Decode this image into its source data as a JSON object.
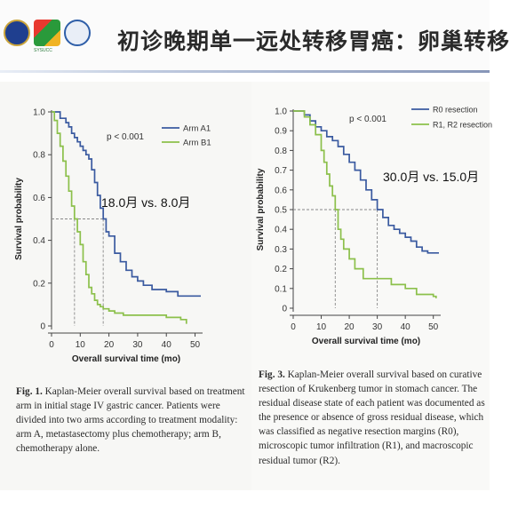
{
  "slide": {
    "title": "初诊晚期单一远处转移胃癌：卵巢转移"
  },
  "logos": [
    {
      "name": "university-seal",
      "color": "#1f3f8f"
    },
    {
      "name": "sysucc-logo",
      "caption": "SYSUCC",
      "color": "#2a9a3b"
    },
    {
      "name": "hospital-emblem",
      "color": "#2e5ea8"
    }
  ],
  "figure1": {
    "caption_label": "Fig. 1.",
    "caption_text": " Kaplan-Meier overall survival based on treatment arm in initial stage IV gastric cancer. Patients were divided into two arms according to treatment modality: arm A, metastasectomy plus chemotherapy; arm B, chemotherapy alone."
  },
  "figure2": {
    "caption_label": "Fig. 3.",
    "caption_text": " Kaplan-Meier overall survival based on curative resection of Krukenberg tumor in stomach cancer. The residual disease state of each patient was documented as the presence or absence of gross residual disease, which was classified as negative resection margins (R0), microscopic tumor infiltration (R1), and macroscopic residual tumor (R2)."
  },
  "chart_data": [
    {
      "type": "line",
      "step": true,
      "xlabel": "Overall survival time (mo)",
      "ylabel": "Survival probability",
      "xlim": [
        0,
        52
      ],
      "ylim": [
        0,
        1.0
      ],
      "xticks": [
        0,
        10,
        20,
        30,
        40,
        50
      ],
      "yticks": [
        0,
        0.2,
        0.4,
        0.6,
        0.8,
        1.0
      ],
      "yticklabels": [
        "0",
        "0.2",
        "0.4",
        "0.6",
        "0.8",
        "1.0"
      ],
      "pvalue": "p < 0.001",
      "annotation": "18.0月 vs. 8.0月",
      "median_y": 0.5,
      "median_x": [
        8,
        18
      ],
      "legend_position": "top-right",
      "series": [
        {
          "name": "Arm A1",
          "color": "#3a5aa0",
          "x": [
            0,
            3,
            5,
            6,
            7,
            8,
            9,
            10,
            11,
            12,
            13,
            14,
            15,
            16,
            17,
            18,
            19,
            20,
            22,
            24,
            26,
            28,
            30,
            32,
            35,
            40,
            44,
            48,
            52
          ],
          "y": [
            1.0,
            0.97,
            0.95,
            0.93,
            0.9,
            0.88,
            0.86,
            0.84,
            0.82,
            0.8,
            0.78,
            0.73,
            0.67,
            0.61,
            0.55,
            0.5,
            0.44,
            0.42,
            0.34,
            0.3,
            0.26,
            0.23,
            0.21,
            0.19,
            0.17,
            0.16,
            0.14,
            0.14,
            0.14
          ]
        },
        {
          "name": "Arm B1",
          "color": "#8cc04b",
          "x": [
            0,
            1,
            2,
            3,
            4,
            5,
            6,
            7,
            8,
            9,
            10,
            11,
            12,
            13,
            14,
            15,
            16,
            17,
            18,
            20,
            22,
            25,
            30,
            35,
            40,
            45,
            47
          ],
          "y": [
            1.0,
            0.96,
            0.9,
            0.84,
            0.77,
            0.7,
            0.63,
            0.56,
            0.5,
            0.44,
            0.38,
            0.3,
            0.24,
            0.18,
            0.15,
            0.12,
            0.1,
            0.09,
            0.08,
            0.07,
            0.06,
            0.05,
            0.05,
            0.05,
            0.04,
            0.03,
            0.01
          ]
        }
      ]
    },
    {
      "type": "line",
      "step": true,
      "xlabel": "Overall survival time (mo)",
      "ylabel": "Survival probability",
      "xlim": [
        0,
        52
      ],
      "ylim": [
        0,
        1.0
      ],
      "xticks": [
        0,
        10,
        20,
        30,
        40,
        50
      ],
      "yticks": [
        0,
        0.1,
        0.2,
        0.3,
        0.4,
        0.5,
        0.6,
        0.7,
        0.8,
        0.9,
        1.0
      ],
      "yticklabels": [
        "0",
        "0.1",
        "0.2",
        "0.3",
        "0.4",
        "0.5",
        "0.6",
        "0.7",
        "0.8",
        "0.9",
        "1.0"
      ],
      "pvalue": "p < 0.001",
      "annotation": "30.0月 vs. 15.0月",
      "median_y": 0.5,
      "median_x": [
        15,
        30
      ],
      "legend_position": "top-right",
      "series": [
        {
          "name": "R0 resection",
          "color": "#3a5aa0",
          "x": [
            0,
            4,
            6,
            8,
            10,
            12,
            14,
            16,
            18,
            20,
            22,
            24,
            26,
            28,
            30,
            32,
            34,
            36,
            38,
            40,
            42,
            44,
            46,
            48,
            52
          ],
          "y": [
            1.0,
            0.98,
            0.95,
            0.92,
            0.9,
            0.87,
            0.85,
            0.82,
            0.78,
            0.74,
            0.7,
            0.65,
            0.6,
            0.55,
            0.5,
            0.46,
            0.42,
            0.4,
            0.38,
            0.36,
            0.34,
            0.31,
            0.29,
            0.28,
            0.28
          ]
        },
        {
          "name": "R1, R2 resection",
          "color": "#8cc04b",
          "x": [
            0,
            4,
            6,
            8,
            10,
            11,
            12,
            13,
            14,
            15,
            16,
            17,
            18,
            20,
            22,
            25,
            28,
            30,
            35,
            40,
            44,
            48,
            50,
            51
          ],
          "y": [
            1.0,
            0.97,
            0.93,
            0.88,
            0.8,
            0.74,
            0.68,
            0.62,
            0.57,
            0.5,
            0.4,
            0.35,
            0.3,
            0.25,
            0.2,
            0.15,
            0.15,
            0.15,
            0.12,
            0.1,
            0.07,
            0.07,
            0.06,
            0.05
          ]
        }
      ]
    }
  ]
}
